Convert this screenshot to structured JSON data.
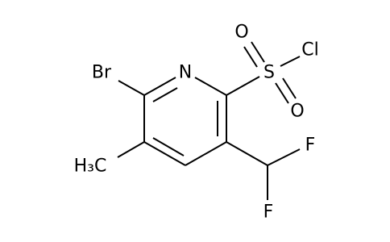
{
  "atoms": {
    "br": "Br",
    "n": "N",
    "s": "S",
    "o_top": "O",
    "o_bottom": "O",
    "cl": "Cl",
    "f_top": "F",
    "f_bottom": "F",
    "methyl": "H₃C"
  }
}
